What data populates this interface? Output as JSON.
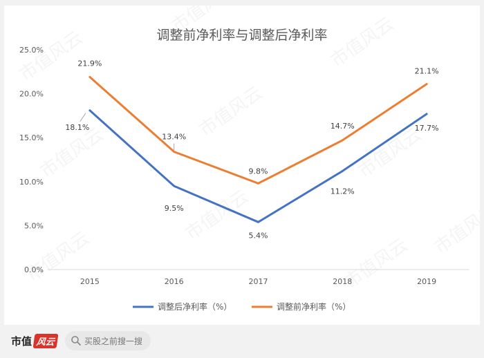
{
  "chart_data": {
    "type": "line",
    "title": "调整前净利率与调整后净利率",
    "categories": [
      "2015",
      "2016",
      "2017",
      "2018",
      "2019"
    ],
    "ylim": [
      0,
      25
    ],
    "yticks": [
      "0.0%",
      "5.0%",
      "10.0%",
      "15.0%",
      "20.0%",
      "25.0%"
    ],
    "grid": false,
    "legend_position": "bottom",
    "series": [
      {
        "name": "调整后净利率（%）",
        "color": "#4472c4",
        "values": [
          18.1,
          9.5,
          5.4,
          11.2,
          17.7
        ],
        "labels": [
          "18.1%",
          "9.5%",
          "5.4%",
          "11.2%",
          "17.7%"
        ]
      },
      {
        "name": "调整前净利率（%）",
        "color": "#ed7d31",
        "values": [
          21.9,
          13.4,
          9.8,
          14.7,
          21.1
        ],
        "labels": [
          "21.9%",
          "13.4%",
          "9.8%",
          "14.7%",
          "21.1%"
        ]
      }
    ]
  },
  "watermark": "市值风云",
  "footer": {
    "brand_text": "市值",
    "brand_badge": "风云",
    "search_placeholder": "买股之前搜一搜"
  }
}
